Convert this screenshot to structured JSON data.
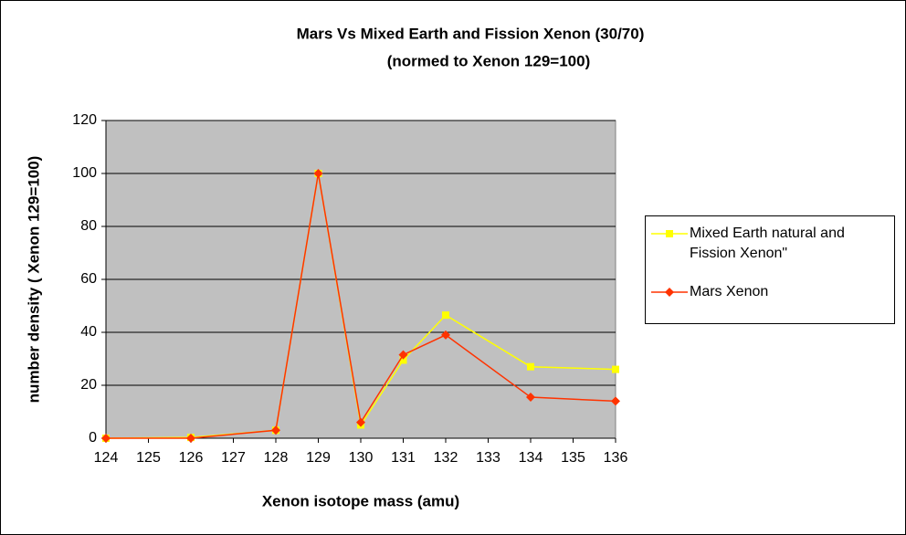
{
  "chart_data": {
    "type": "line",
    "title": "Mars Vs Mixed Earth and Fission Xenon (30/70)",
    "subtitle": "(normed to Xenon 129=100)",
    "x_label": "Xenon isotope mass (amu)",
    "y_label": "number density ( Xenon 129=100)",
    "x": [
      124,
      126,
      128,
      129,
      130,
      131,
      132,
      134,
      136
    ],
    "series": [
      {
        "name": "Mixed  Earth natural and Fission Xenon\"",
        "color": "#ffff00",
        "marker": "square",
        "values": [
          0,
          0.3,
          3,
          100,
          5,
          29.5,
          46.5,
          27,
          26
        ]
      },
      {
        "name": "Mars Xenon",
        "color": "#ff3300",
        "marker": "diamond",
        "values": [
          0,
          0,
          3,
          100,
          6,
          31.5,
          39,
          15.5,
          14
        ]
      }
    ],
    "xlim": [
      124,
      136
    ],
    "xticks": [
      124,
      125,
      126,
      127,
      128,
      129,
      130,
      131,
      132,
      133,
      134,
      135,
      136
    ],
    "ylim": [
      0,
      120
    ],
    "yticks": [
      0,
      20,
      40,
      60,
      80,
      100,
      120
    ],
    "grid": true,
    "legend": "right"
  }
}
